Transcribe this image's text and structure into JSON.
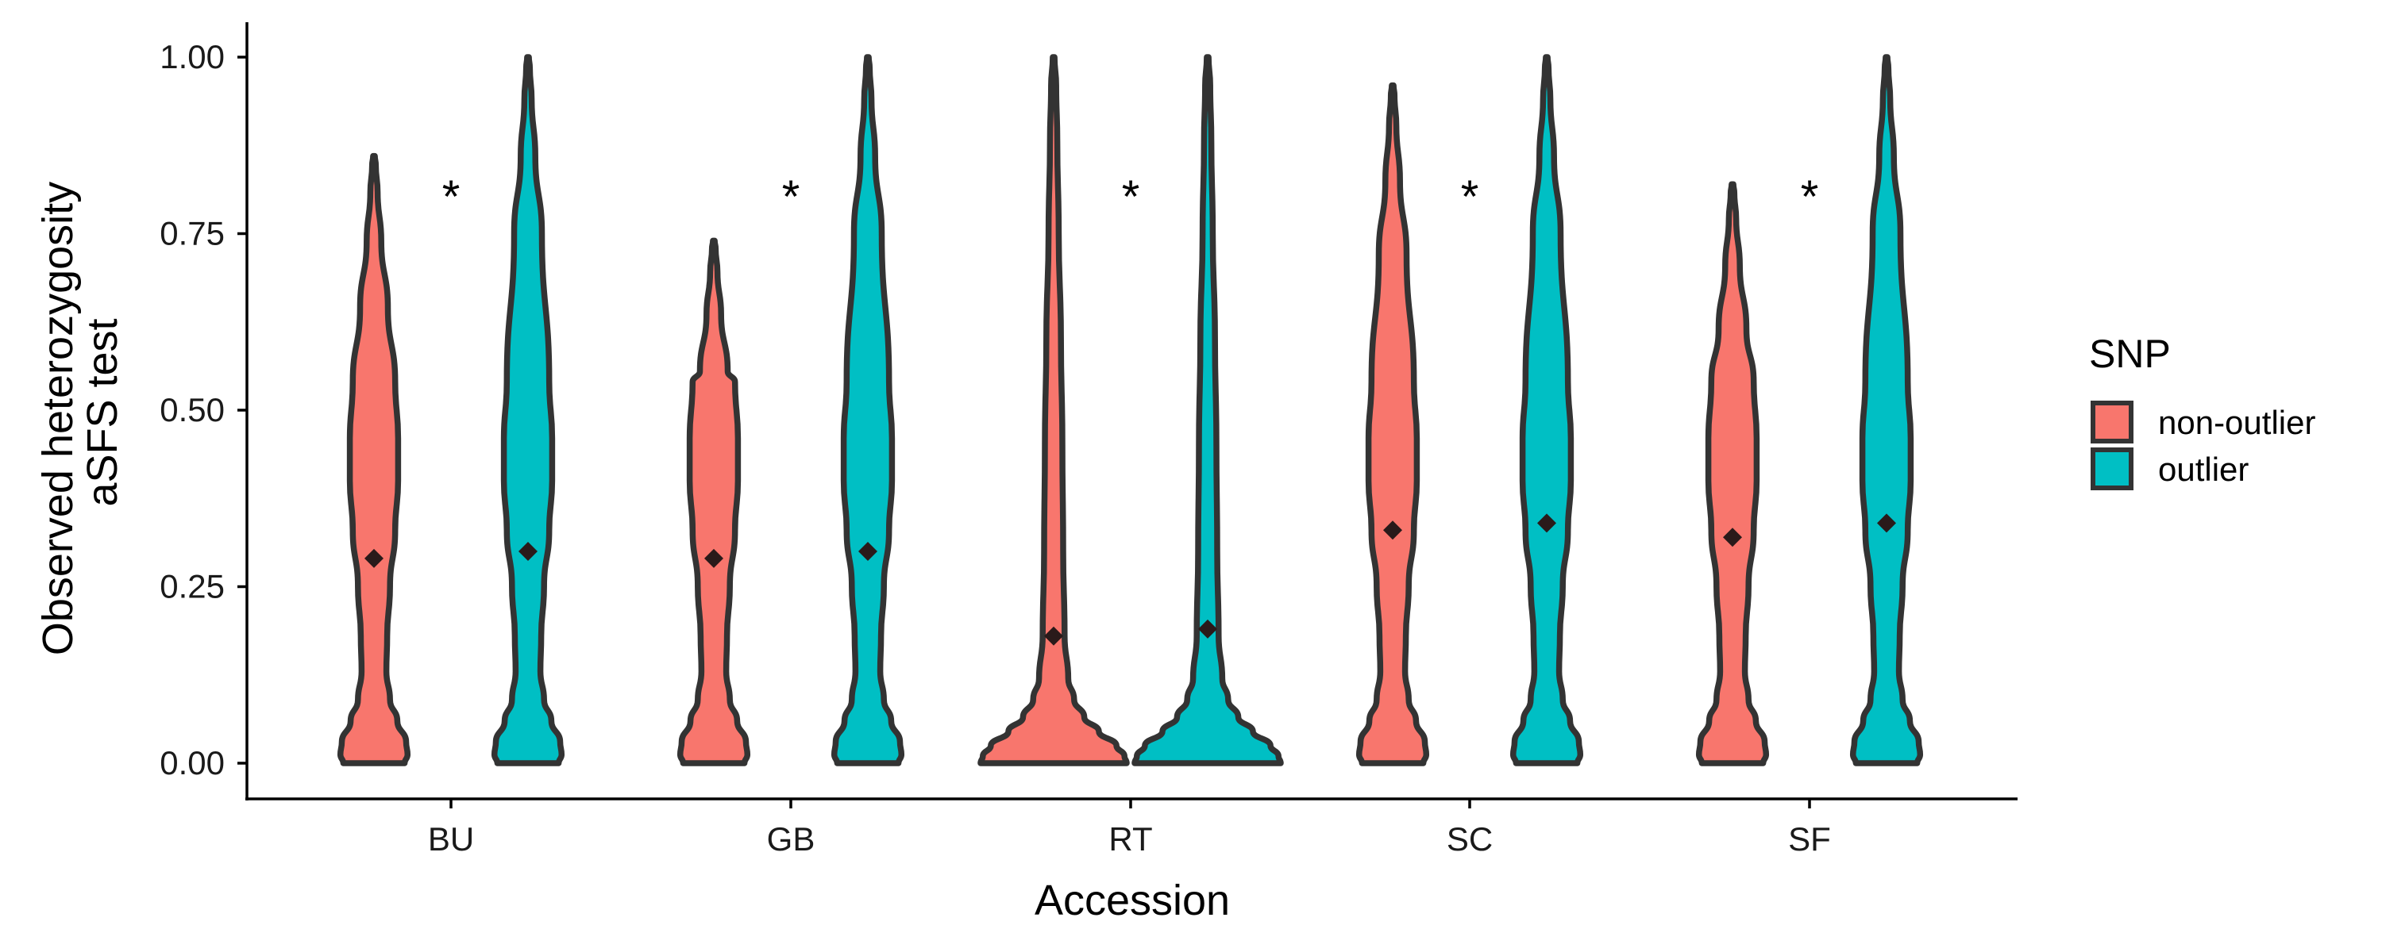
{
  "chart_data": {
    "type": "violin",
    "xlabel": "Accession",
    "ylabel": [
      "Observed heterozygosity",
      "aSFS test"
    ],
    "ylim": [
      0,
      1
    ],
    "yticks": [
      "0.00",
      "0.25",
      "0.50",
      "0.75",
      "1.00"
    ],
    "categories": [
      "BU",
      "GB",
      "RT",
      "SC",
      "SF"
    ],
    "legend": {
      "title": "SNP",
      "position": "right",
      "entries": [
        {
          "label": "non-outlier",
          "color": "#F8766D"
        },
        {
          "label": "outlier",
          "color": "#00BFC4"
        }
      ]
    },
    "significance": [
      "*",
      "*",
      "*",
      "*",
      "*"
    ],
    "groups": [
      {
        "category": "BU",
        "snp": "non-outlier",
        "max": 0.86,
        "mean": 0.29,
        "shape": "bimodal"
      },
      {
        "category": "BU",
        "snp": "outlier",
        "max": 1.0,
        "mean": 0.3,
        "shape": "bimodal"
      },
      {
        "category": "GB",
        "snp": "non-outlier",
        "max": 0.74,
        "mean": 0.29,
        "shape": "bimodal"
      },
      {
        "category": "GB",
        "snp": "outlier",
        "max": 1.0,
        "mean": 0.3,
        "shape": "bimodal"
      },
      {
        "category": "RT",
        "snp": "non-outlier",
        "max": 1.0,
        "mean": 0.18,
        "shape": "zero-heavy"
      },
      {
        "category": "RT",
        "snp": "outlier",
        "max": 1.0,
        "mean": 0.19,
        "shape": "zero-heavy"
      },
      {
        "category": "SC",
        "snp": "non-outlier",
        "max": 0.96,
        "mean": 0.33,
        "shape": "bimodal"
      },
      {
        "category": "SC",
        "snp": "outlier",
        "max": 1.0,
        "mean": 0.34,
        "shape": "bimodal"
      },
      {
        "category": "SF",
        "snp": "non-outlier",
        "max": 0.82,
        "mean": 0.32,
        "shape": "bimodal"
      },
      {
        "category": "SF",
        "snp": "outlier",
        "max": 1.0,
        "mean": 0.34,
        "shape": "bimodal"
      }
    ]
  }
}
